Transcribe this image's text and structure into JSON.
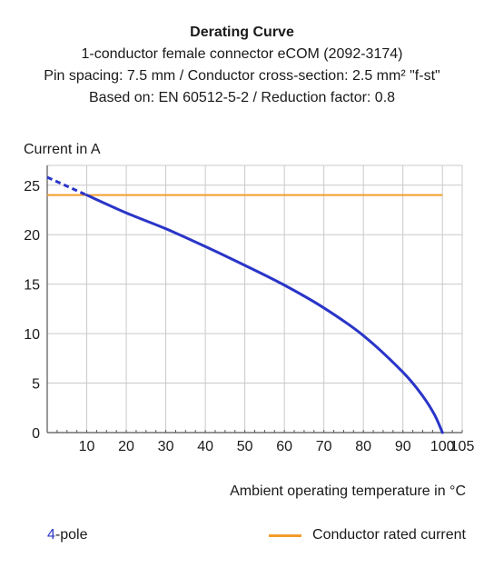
{
  "chart_data": {
    "type": "line",
    "title": "Derating Curve",
    "subtitles": [
      "1-conductor female connector eCOM (2092-3174)",
      "Pin spacing: 7.5 mm / Conductor cross-section: 2.5 mm² \"f-st\"",
      "Based on: EN 60512-5-2 / Reduction factor: 0.8"
    ],
    "ylabel": "Current in A",
    "xlabel": "Ambient operating temperature in °C",
    "xlim": [
      0,
      105
    ],
    "ylim": [
      0,
      27
    ],
    "x_ticks": [
      "10",
      "20",
      "30",
      "40",
      "50",
      "60",
      "70",
      "80",
      "90",
      "100",
      "105"
    ],
    "y_ticks": [
      "0",
      "5",
      "10",
      "15",
      "20",
      "25"
    ],
    "grid": true,
    "series": [
      {
        "name": "4-pole",
        "color": "#2a35c8",
        "dashed_x": [
          0,
          10
        ],
        "dashed_y": [
          25.8,
          24.0
        ],
        "x": [
          10,
          20,
          30,
          40,
          50,
          60,
          70,
          80,
          90,
          95,
          98,
          100
        ],
        "y": [
          24.0,
          22.2,
          20.6,
          18.8,
          16.9,
          14.9,
          12.6,
          9.8,
          6.1,
          3.7,
          1.8,
          0.0
        ]
      },
      {
        "name": "Conductor rated current",
        "color": "#f39c2a",
        "x": [
          0,
          100
        ],
        "y": [
          24,
          24
        ]
      }
    ],
    "legend": {
      "left_number": "4",
      "left_text": "-pole",
      "right_text": "Conductor rated current"
    }
  }
}
